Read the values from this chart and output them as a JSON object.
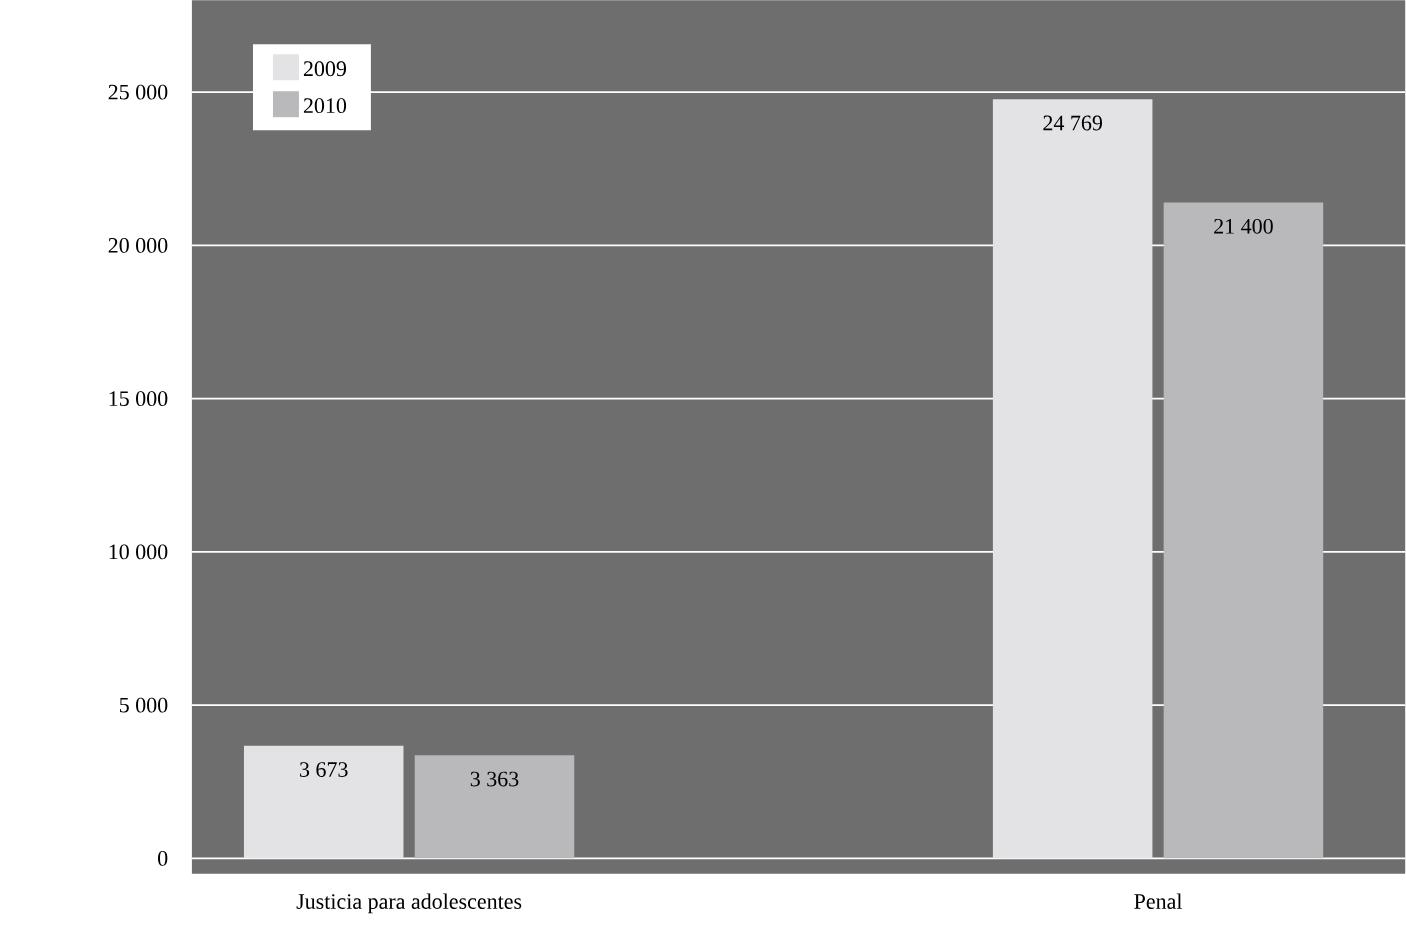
{
  "chart_data": {
    "type": "bar",
    "categories": [
      "Justicia para adolescentes",
      "Penal"
    ],
    "series": [
      {
        "name": "2009",
        "color": "#e3e3e5",
        "values": [
          3673,
          24769
        ],
        "value_labels": [
          "3 673",
          "24 769"
        ]
      },
      {
        "name": "2010",
        "color": "#b9b9bb",
        "values": [
          3363,
          21400
        ],
        "value_labels": [
          "3 363",
          "21 400"
        ]
      }
    ],
    "ylim": [
      -500,
      28000
    ],
    "yticks": [
      {
        "value": 0,
        "label": "0"
      },
      {
        "value": 5000,
        "label": "5 000"
      },
      {
        "value": 10000,
        "label": "10 000"
      },
      {
        "value": 15000,
        "label": "15 000"
      },
      {
        "value": 20000,
        "label": "20 000"
      },
      {
        "value": 25000,
        "label": "25 000"
      }
    ],
    "grid": "y",
    "legend": "top left"
  }
}
